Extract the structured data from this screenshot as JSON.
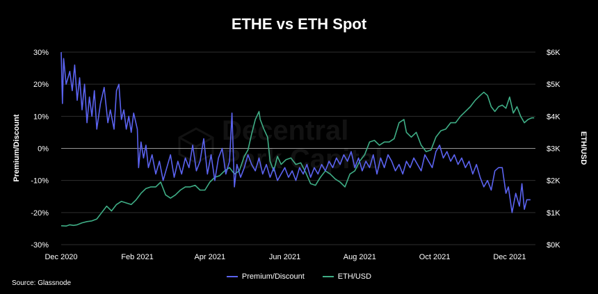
{
  "title": "ETHE vs ETH Spot",
  "source": "Source: Glassnode",
  "watermark": {
    "line1": "Decentral",
    "line2": "Park Capital"
  },
  "colors": {
    "premium": "#5b63f0",
    "eth": "#3fae86",
    "background": "#000000",
    "grid": "#ffffff"
  },
  "chart_data": {
    "type": "line",
    "title": "ETHE vs ETH Spot",
    "xlabel": "",
    "x_ticks": [
      "Dec 2020",
      "Feb 2021",
      "Apr 2021",
      "Jun 2021",
      "Aug 2021",
      "Oct 2021",
      "Dec 2021"
    ],
    "xlim": [
      "2020-12-01",
      "2021-12-22"
    ],
    "y_left": {
      "label": "Premium/Discount",
      "lim": [
        -30,
        30
      ],
      "ticks": [
        "-30%",
        "-20%",
        "-10%",
        "0%",
        "10%",
        "20%",
        "30%"
      ]
    },
    "y_right": {
      "label": "ETH/USD",
      "lim": [
        0,
        6000
      ],
      "ticks": [
        "$0K",
        "$1K",
        "$2K",
        "$3K",
        "$4K",
        "$5K",
        "$6K"
      ]
    },
    "grid": "horizontal",
    "legend": "bottom",
    "series": [
      {
        "name": "Premium/Discount",
        "axis": "left",
        "points": [
          [
            "2020-12-01",
            30
          ],
          [
            "2020-12-02",
            14
          ],
          [
            "2020-12-03",
            28
          ],
          [
            "2020-12-05",
            20
          ],
          [
            "2020-12-08",
            24
          ],
          [
            "2020-12-10",
            18
          ],
          [
            "2020-12-12",
            26
          ],
          [
            "2020-12-14",
            15
          ],
          [
            "2020-12-16",
            22
          ],
          [
            "2020-12-18",
            12
          ],
          [
            "2020-12-20",
            20
          ],
          [
            "2020-12-22",
            8
          ],
          [
            "2020-12-24",
            16
          ],
          [
            "2020-12-26",
            10
          ],
          [
            "2020-12-28",
            18
          ],
          [
            "2020-12-30",
            6
          ],
          [
            "2021-01-02",
            14
          ],
          [
            "2021-01-05",
            19
          ],
          [
            "2021-01-08",
            8
          ],
          [
            "2021-01-10",
            12
          ],
          [
            "2021-01-13",
            6
          ],
          [
            "2021-01-15",
            18
          ],
          [
            "2021-01-17",
            20
          ],
          [
            "2021-01-19",
            9
          ],
          [
            "2021-01-21",
            12
          ],
          [
            "2021-01-23",
            6
          ],
          [
            "2021-01-25",
            10
          ],
          [
            "2021-01-27",
            5
          ],
          [
            "2021-01-29",
            11
          ],
          [
            "2021-02-01",
            6
          ],
          [
            "2021-02-02",
            -6
          ],
          [
            "2021-02-04",
            2
          ],
          [
            "2021-02-06",
            -3
          ],
          [
            "2021-02-08",
            1
          ],
          [
            "2021-02-10",
            -6
          ],
          [
            "2021-02-13",
            -2
          ],
          [
            "2021-02-16",
            -8
          ],
          [
            "2021-02-19",
            -4
          ],
          [
            "2021-02-22",
            -10
          ],
          [
            "2021-02-25",
            -6
          ],
          [
            "2021-02-28",
            -2
          ],
          [
            "2021-03-03",
            -9
          ],
          [
            "2021-03-06",
            -4
          ],
          [
            "2021-03-09",
            -8
          ],
          [
            "2021-03-12",
            -3
          ],
          [
            "2021-03-15",
            -6
          ],
          [
            "2021-03-18",
            1
          ],
          [
            "2021-03-21",
            -7
          ],
          [
            "2021-03-24",
            -4
          ],
          [
            "2021-03-27",
            3
          ],
          [
            "2021-03-30",
            -8
          ],
          [
            "2021-04-02",
            -2
          ],
          [
            "2021-04-05",
            -10
          ],
          [
            "2021-04-08",
            -3
          ],
          [
            "2021-04-11",
            0
          ],
          [
            "2021-04-14",
            -8
          ],
          [
            "2021-04-17",
            -4
          ],
          [
            "2021-04-19",
            11
          ],
          [
            "2021-04-21",
            -12
          ],
          [
            "2021-04-23",
            -5
          ],
          [
            "2021-04-26",
            -9
          ],
          [
            "2021-04-29",
            -6
          ],
          [
            "2021-05-02",
            -2
          ],
          [
            "2021-05-05",
            -5
          ],
          [
            "2021-05-08",
            -7
          ],
          [
            "2021-05-11",
            -3
          ],
          [
            "2021-05-14",
            -8
          ],
          [
            "2021-05-17",
            -5
          ],
          [
            "2021-05-20",
            -9
          ],
          [
            "2021-05-23",
            -6
          ],
          [
            "2021-05-26",
            -10
          ],
          [
            "2021-05-29",
            -8
          ],
          [
            "2021-06-01",
            -6
          ],
          [
            "2021-06-04",
            -9
          ],
          [
            "2021-06-07",
            -7
          ],
          [
            "2021-06-10",
            -10
          ],
          [
            "2021-06-13",
            -6
          ],
          [
            "2021-06-16",
            -8
          ],
          [
            "2021-06-19",
            -5
          ],
          [
            "2021-06-22",
            -9
          ],
          [
            "2021-06-25",
            -6
          ],
          [
            "2021-06-28",
            -8
          ],
          [
            "2021-07-01",
            -5
          ],
          [
            "2021-07-04",
            -7
          ],
          [
            "2021-07-07",
            -4
          ],
          [
            "2021-07-10",
            -6
          ],
          [
            "2021-07-13",
            -3
          ],
          [
            "2021-07-16",
            -5
          ],
          [
            "2021-07-19",
            -2
          ],
          [
            "2021-07-22",
            -4
          ],
          [
            "2021-07-25",
            -1
          ],
          [
            "2021-07-28",
            -6
          ],
          [
            "2021-07-31",
            -3
          ],
          [
            "2021-08-03",
            -7
          ],
          [
            "2021-08-06",
            -4
          ],
          [
            "2021-08-09",
            -6
          ],
          [
            "2021-08-12",
            -2
          ],
          [
            "2021-08-15",
            -8
          ],
          [
            "2021-08-18",
            -3
          ],
          [
            "2021-08-21",
            -6
          ],
          [
            "2021-08-24",
            -2
          ],
          [
            "2021-08-27",
            -4
          ],
          [
            "2021-08-30",
            -7
          ],
          [
            "2021-09-02",
            -5
          ],
          [
            "2021-09-05",
            -8
          ],
          [
            "2021-09-08",
            -4
          ],
          [
            "2021-09-11",
            -6
          ],
          [
            "2021-09-14",
            -3
          ],
          [
            "2021-09-17",
            -5
          ],
          [
            "2021-09-20",
            -7
          ],
          [
            "2021-09-23",
            -2
          ],
          [
            "2021-09-26",
            -4
          ],
          [
            "2021-09-29",
            -6
          ],
          [
            "2021-10-02",
            -1
          ],
          [
            "2021-10-05",
            1
          ],
          [
            "2021-10-08",
            -3
          ],
          [
            "2021-10-11",
            -1
          ],
          [
            "2021-10-14",
            -4
          ],
          [
            "2021-10-17",
            -2
          ],
          [
            "2021-10-20",
            -5
          ],
          [
            "2021-10-23",
            -3
          ],
          [
            "2021-10-26",
            -6
          ],
          [
            "2021-10-29",
            -4
          ],
          [
            "2021-11-01",
            -8
          ],
          [
            "2021-11-04",
            -5
          ],
          [
            "2021-11-07",
            -9
          ],
          [
            "2021-11-10",
            -12
          ],
          [
            "2021-11-13",
            -10
          ],
          [
            "2021-11-16",
            -13
          ],
          [
            "2021-11-19",
            -7
          ],
          [
            "2021-11-22",
            -6
          ],
          [
            "2021-11-25",
            -6
          ],
          [
            "2021-11-28",
            -14
          ],
          [
            "2021-11-30",
            -12
          ],
          [
            "2021-12-03",
            -20
          ],
          [
            "2021-12-06",
            -14
          ],
          [
            "2021-12-09",
            -18
          ],
          [
            "2021-12-11",
            -11
          ],
          [
            "2021-12-13",
            -19
          ],
          [
            "2021-12-15",
            -16
          ],
          [
            "2021-12-18",
            -16
          ]
        ]
      },
      {
        "name": "ETH/USD",
        "axis": "right",
        "points": [
          [
            "2020-12-01",
            590
          ],
          [
            "2020-12-05",
            580
          ],
          [
            "2020-12-08",
            620
          ],
          [
            "2020-12-11",
            600
          ],
          [
            "2020-12-14",
            620
          ],
          [
            "2020-12-18",
            680
          ],
          [
            "2020-12-22",
            720
          ],
          [
            "2020-12-26",
            740
          ],
          [
            "2020-12-30",
            800
          ],
          [
            "2021-01-03",
            1000
          ],
          [
            "2021-01-07",
            1200
          ],
          [
            "2021-01-11",
            1050
          ],
          [
            "2021-01-15",
            1250
          ],
          [
            "2021-01-19",
            1350
          ],
          [
            "2021-01-23",
            1300
          ],
          [
            "2021-01-27",
            1250
          ],
          [
            "2021-01-31",
            1400
          ],
          [
            "2021-02-04",
            1600
          ],
          [
            "2021-02-08",
            1750
          ],
          [
            "2021-02-12",
            1800
          ],
          [
            "2021-02-16",
            1800
          ],
          [
            "2021-02-20",
            1950
          ],
          [
            "2021-02-24",
            1550
          ],
          [
            "2021-02-28",
            1450
          ],
          [
            "2021-03-04",
            1550
          ],
          [
            "2021-03-08",
            1700
          ],
          [
            "2021-03-12",
            1800
          ],
          [
            "2021-03-16",
            1800
          ],
          [
            "2021-03-20",
            1850
          ],
          [
            "2021-03-24",
            1700
          ],
          [
            "2021-03-28",
            1700
          ],
          [
            "2021-04-01",
            1950
          ],
          [
            "2021-04-05",
            2100
          ],
          [
            "2021-04-09",
            2150
          ],
          [
            "2021-04-13",
            2300
          ],
          [
            "2021-04-17",
            2400
          ],
          [
            "2021-04-21",
            2200
          ],
          [
            "2021-04-25",
            2300
          ],
          [
            "2021-04-29",
            2750
          ],
          [
            "2021-05-02",
            2950
          ],
          [
            "2021-05-05",
            3450
          ],
          [
            "2021-05-08",
            3900
          ],
          [
            "2021-05-11",
            4150
          ],
          [
            "2021-05-12",
            3900
          ],
          [
            "2021-05-15",
            3600
          ],
          [
            "2021-05-18",
            3350
          ],
          [
            "2021-05-20",
            2600
          ],
          [
            "2021-05-23",
            2300
          ],
          [
            "2021-05-26",
            2750
          ],
          [
            "2021-05-29",
            2500
          ],
          [
            "2021-06-02",
            2650
          ],
          [
            "2021-06-06",
            2700
          ],
          [
            "2021-06-10",
            2500
          ],
          [
            "2021-06-14",
            2550
          ],
          [
            "2021-06-18",
            2250
          ],
          [
            "2021-06-22",
            1900
          ],
          [
            "2021-06-26",
            1850
          ],
          [
            "2021-06-30",
            2100
          ],
          [
            "2021-07-04",
            2300
          ],
          [
            "2021-07-08",
            2200
          ],
          [
            "2021-07-12",
            2050
          ],
          [
            "2021-07-16",
            1950
          ],
          [
            "2021-07-20",
            1800
          ],
          [
            "2021-07-24",
            2200
          ],
          [
            "2021-07-28",
            2300
          ],
          [
            "2021-08-01",
            2600
          ],
          [
            "2021-08-05",
            2800
          ],
          [
            "2021-08-09",
            3200
          ],
          [
            "2021-08-13",
            3250
          ],
          [
            "2021-08-17",
            3100
          ],
          [
            "2021-08-21",
            3200
          ],
          [
            "2021-08-25",
            3200
          ],
          [
            "2021-08-29",
            3300
          ],
          [
            "2021-09-02",
            3800
          ],
          [
            "2021-09-06",
            3900
          ],
          [
            "2021-09-08",
            3500
          ],
          [
            "2021-09-12",
            3350
          ],
          [
            "2021-09-16",
            3500
          ],
          [
            "2021-09-20",
            3100
          ],
          [
            "2021-09-24",
            2900
          ],
          [
            "2021-09-28",
            2950
          ],
          [
            "2021-10-02",
            3350
          ],
          [
            "2021-10-06",
            3550
          ],
          [
            "2021-10-10",
            3600
          ],
          [
            "2021-10-14",
            3800
          ],
          [
            "2021-10-18",
            3800
          ],
          [
            "2021-10-22",
            4000
          ],
          [
            "2021-10-26",
            4150
          ],
          [
            "2021-10-30",
            4300
          ],
          [
            "2021-11-03",
            4500
          ],
          [
            "2021-11-07",
            4650
          ],
          [
            "2021-11-10",
            4750
          ],
          [
            "2021-11-13",
            4650
          ],
          [
            "2021-11-16",
            4300
          ],
          [
            "2021-11-19",
            4150
          ],
          [
            "2021-11-22",
            4300
          ],
          [
            "2021-11-25",
            4350
          ],
          [
            "2021-11-28",
            4250
          ],
          [
            "2021-12-01",
            4600
          ],
          [
            "2021-12-04",
            4100
          ],
          [
            "2021-12-07",
            4300
          ],
          [
            "2021-12-10",
            4000
          ],
          [
            "2021-12-13",
            3800
          ],
          [
            "2021-12-16",
            3900
          ],
          [
            "2021-12-19",
            3950
          ],
          [
            "2021-12-21",
            3950
          ]
        ]
      }
    ]
  }
}
